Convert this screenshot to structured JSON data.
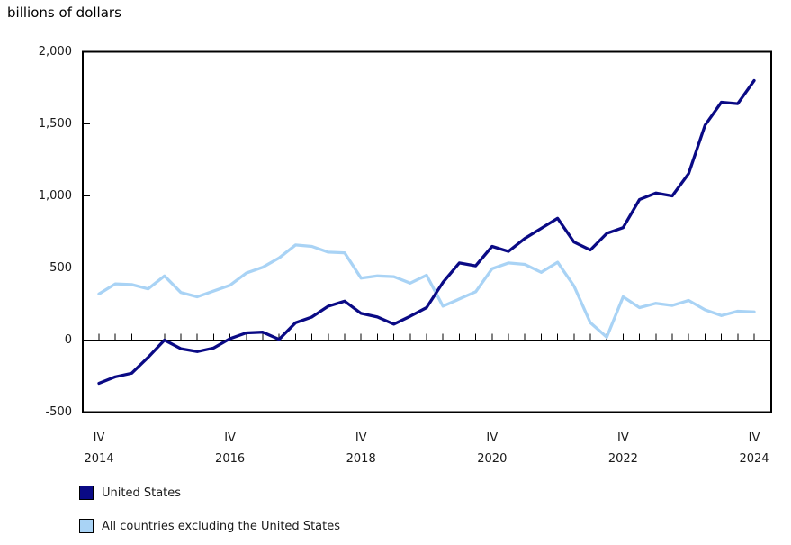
{
  "chart_data": {
    "type": "line",
    "title": "billions of dollars",
    "xlabel": "",
    "ylabel": "billions of dollars",
    "ylim": [
      -500,
      2000
    ],
    "grid": false,
    "legend_position": "bottom-left",
    "y_ticks": [
      {
        "value": 2000,
        "label": "2,000"
      },
      {
        "value": 1500,
        "label": "1,500"
      },
      {
        "value": 1000,
        "label": "1,000"
      },
      {
        "value": 500,
        "label": "500"
      },
      {
        "value": 0,
        "label": "0"
      },
      {
        "value": -500,
        "label": "-500"
      }
    ],
    "x_major_ticks": [
      {
        "index": 0,
        "quarter": "IV",
        "year": "2014"
      },
      {
        "index": 8,
        "quarter": "IV",
        "year": "2016"
      },
      {
        "index": 16,
        "quarter": "IV",
        "year": "2018"
      },
      {
        "index": 24,
        "quarter": "IV",
        "year": "2020"
      },
      {
        "index": 32,
        "quarter": "IV",
        "year": "2022"
      },
      {
        "index": 40,
        "quarter": "IV",
        "year": "2024"
      }
    ],
    "x": [
      "2014 Q4",
      "2015 Q1",
      "2015 Q2",
      "2015 Q3",
      "2015 Q4",
      "2016 Q1",
      "2016 Q2",
      "2016 Q3",
      "2016 Q4",
      "2017 Q1",
      "2017 Q2",
      "2017 Q3",
      "2017 Q4",
      "2018 Q1",
      "2018 Q2",
      "2018 Q3",
      "2018 Q4",
      "2019 Q1",
      "2019 Q2",
      "2019 Q3",
      "2019 Q4",
      "2020 Q1",
      "2020 Q2",
      "2020 Q3",
      "2020 Q4",
      "2021 Q1",
      "2021 Q2",
      "2021 Q3",
      "2021 Q4",
      "2022 Q1",
      "2022 Q2",
      "2022 Q3",
      "2022 Q4",
      "2023 Q1",
      "2023 Q2",
      "2023 Q3",
      "2023 Q4",
      "2024 Q1",
      "2024 Q2",
      "2024 Q3",
      "2024 Q4"
    ],
    "series": [
      {
        "name": "United States",
        "color": "#0a0a85",
        "values": [
          -300,
          -255,
          -230,
          -120,
          0,
          -60,
          -80,
          -55,
          10,
          50,
          55,
          5,
          120,
          160,
          235,
          270,
          185,
          160,
          110,
          165,
          225,
          400,
          535,
          515,
          650,
          615,
          705,
          775,
          845,
          680,
          625,
          740,
          780,
          975,
          1020,
          1000,
          1155,
          1490,
          1650,
          1640,
          1800
        ]
      },
      {
        "name": "All countries excluding the United States",
        "color": "#a9d3f5",
        "values": [
          320,
          390,
          385,
          355,
          445,
          330,
          300,
          340,
          380,
          465,
          505,
          570,
          660,
          650,
          610,
          605,
          430,
          445,
          440,
          395,
          450,
          235,
          285,
          335,
          495,
          535,
          525,
          470,
          540,
          375,
          120,
          20,
          300,
          225,
          255,
          240,
          275,
          210,
          170,
          200,
          195
        ]
      }
    ],
    "axis_color": "#000000"
  }
}
